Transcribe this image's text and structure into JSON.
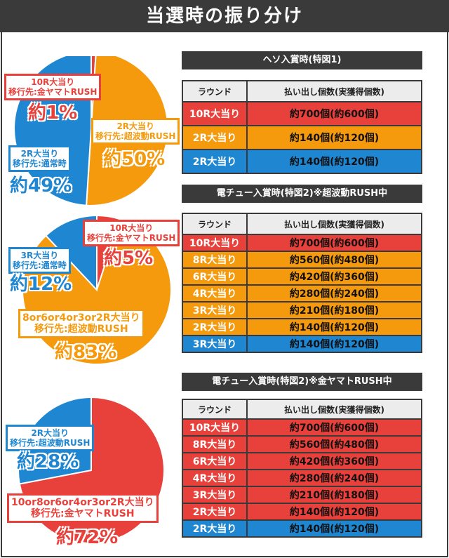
{
  "header": {
    "title": "当選時の振り分け"
  },
  "colors": {
    "red": "#e8413b",
    "orange": "#f59a0d",
    "blue": "#1f86d1",
    "dark": "#3a3a3a"
  },
  "chart_data": [
    {
      "type": "pie",
      "slices": [
        {
          "label_lines": [
            "10R大当り",
            "移行先:金ヤマトRUSH"
          ],
          "pct_text": "約1%",
          "value": 1,
          "color": "#e8413b"
        },
        {
          "label_lines": [
            "2R大当り",
            "移行先:超波動RUSH"
          ],
          "pct_text": "約50%",
          "value": 50,
          "color": "#f59a0d"
        },
        {
          "label_lines": [
            "2R大当り",
            "移行先:通常時"
          ],
          "pct_text": "約49%",
          "value": 49,
          "color": "#1f86d1"
        }
      ]
    },
    {
      "type": "pie",
      "slices": [
        {
          "label_lines": [
            "10R大当り",
            "移行先:金ヤマトRUSH"
          ],
          "pct_text": "約5%",
          "value": 5,
          "color": "#e8413b"
        },
        {
          "label_lines": [
            "8or6or4or3or2R大当り",
            "移行先:超波動RUSH"
          ],
          "pct_text": "約83%",
          "value": 83,
          "color": "#f59a0d"
        },
        {
          "label_lines": [
            "3R大当り",
            "移行先:通常時"
          ],
          "pct_text": "約12%",
          "value": 12,
          "color": "#1f86d1"
        }
      ]
    },
    {
      "type": "pie",
      "slices": [
        {
          "label_lines": [
            "10or8or6or4or3or2R大当り",
            "移行先:金ヤマトRUSH"
          ],
          "pct_text": "約72%",
          "value": 72,
          "color": "#e8413b"
        },
        {
          "label_lines": [
            "2R大当り",
            "移行先:超波動RUSH"
          ],
          "pct_text": "約28%",
          "value": 28,
          "color": "#1f86d1"
        }
      ]
    }
  ],
  "tables": [
    {
      "title": "ヘソ入賞時(特図1)",
      "head": [
        "ラウンド",
        "払い出し個数(実獲得個数)"
      ],
      "rows": [
        {
          "round": "10R大当り",
          "payout": "約700個(約600個)",
          "color": "red"
        },
        {
          "round": "2R大当り",
          "payout": "約140個(約120個)",
          "color": "orange"
        },
        {
          "round": "2R大当り",
          "payout": "約140個(約120個)",
          "color": "blue"
        }
      ]
    },
    {
      "title": "電チュー入賞時(特図2)※超波動RUSH中",
      "head": [
        "ラウンド",
        "払い出し個数(実獲得個数)"
      ],
      "rows": [
        {
          "round": "10R大当り",
          "payout": "約700個(約600個)",
          "color": "red"
        },
        {
          "round": "8R大当り",
          "payout": "約560個(約480個)",
          "color": "orange"
        },
        {
          "round": "6R大当り",
          "payout": "約420個(約360個)",
          "color": "orange"
        },
        {
          "round": "4R大当り",
          "payout": "約280個(約240個)",
          "color": "orange"
        },
        {
          "round": "3R大当り",
          "payout": "約210個(約180個)",
          "color": "orange"
        },
        {
          "round": "2R大当り",
          "payout": "約140個(約120個)",
          "color": "orange"
        },
        {
          "round": "3R大当り",
          "payout": "約140個(約120個)",
          "color": "blue"
        }
      ]
    },
    {
      "title": "電チュー入賞時(特図2)※金ヤマトRUSH中",
      "head": [
        "ラウンド",
        "払い出し個数(実獲得個数)"
      ],
      "rows": [
        {
          "round": "10R大当り",
          "payout": "約700個(約600個)",
          "color": "red"
        },
        {
          "round": "8R大当り",
          "payout": "約560個(約480個)",
          "color": "red"
        },
        {
          "round": "6R大当り",
          "payout": "約420個(約360個)",
          "color": "red"
        },
        {
          "round": "4R大当り",
          "payout": "約280個(約240個)",
          "color": "red"
        },
        {
          "round": "3R大当り",
          "payout": "約210個(約180個)",
          "color": "red"
        },
        {
          "round": "2R大当り",
          "payout": "約140個(約120個)",
          "color": "red"
        },
        {
          "round": "2R大当り",
          "payout": "約140個(約120個)",
          "color": "blue"
        }
      ]
    }
  ]
}
